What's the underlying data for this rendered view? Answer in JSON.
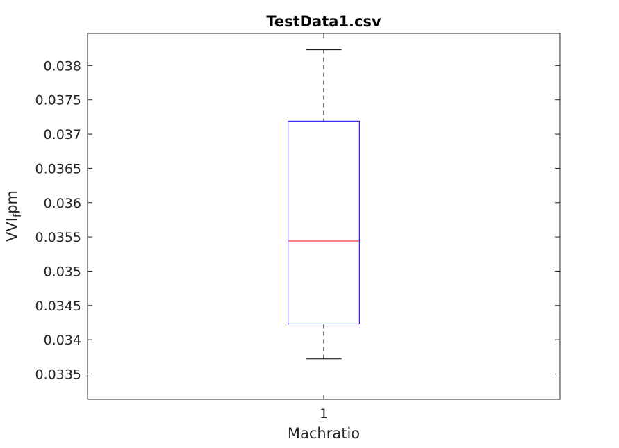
{
  "chart_data": {
    "type": "boxplot",
    "title": "TestData1.csv",
    "xlabel": "Machratio",
    "ylabel": {
      "base": "VVI",
      "subscript": "f",
      "suffix": "pm"
    },
    "categories": [
      "1"
    ],
    "ylim": [
      0.03313,
      0.03847
    ],
    "yticks": [
      0.0335,
      0.034,
      0.0345,
      0.035,
      0.0355,
      0.036,
      0.0365,
      0.037,
      0.0375,
      0.038
    ],
    "ytick_labels": [
      "0.0335",
      "0.034",
      "0.0345",
      "0.035",
      "0.0355",
      "0.036",
      "0.0365",
      "0.037",
      "0.0375",
      "0.038"
    ],
    "boxes": [
      {
        "category": "1",
        "whisker_low": 0.03372,
        "q1": 0.03423,
        "median": 0.03544,
        "q3": 0.03719,
        "whisker_high": 0.03823
      }
    ],
    "grid": false,
    "legend": "none",
    "colors": {
      "box": "#0000ff",
      "median": "#ff0000",
      "whisker": "#000000",
      "axes": "#262626",
      "text": "#262626",
      "title": "#000000"
    }
  }
}
